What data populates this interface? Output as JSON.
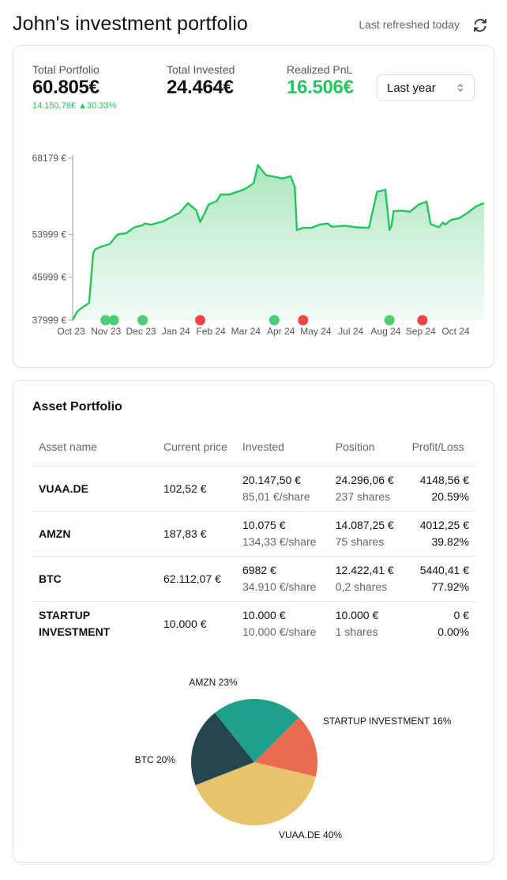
{
  "header": {
    "title": "John's investment portfolio",
    "refresh_text": "Last refreshed today"
  },
  "stats": {
    "total_portfolio": {
      "label": "Total Portfolio",
      "value": "60.805€",
      "change_abs": "14.150,78€",
      "change_pct": "▲30.33%"
    },
    "total_invested": {
      "label": "Total Invested",
      "value": "24.464€"
    },
    "realized_pnl": {
      "label": "Realized PnL",
      "value": "16.506€"
    }
  },
  "period_select": {
    "value": "Last year"
  },
  "colors": {
    "accent_green": "#22c55e",
    "buy_marker": "#4ccd73",
    "sell_marker": "#ef4444",
    "area_fill": "#bbf0cc"
  },
  "chart_data": [
    {
      "type": "area",
      "y_tick_labels": [
        "68179 €",
        "53999 €",
        "45999 €",
        "37999 €"
      ],
      "y_ticks": [
        68179,
        53999,
        45999,
        37999
      ],
      "ylim": [
        37999,
        68179
      ],
      "x_tick_labels": [
        "Oct 23",
        "Nov 23",
        "Dec 23",
        "Jan 24",
        "Feb 24",
        "Mar 24",
        "Apr 24",
        "May 24",
        "Jul 24",
        "Aug 24",
        "Sep 24",
        "Oct 24"
      ],
      "grid": false,
      "series": [
        {
          "x": [
            0.0,
            0.01,
            0.02,
            0.03,
            0.04,
            0.05,
            0.055,
            0.06,
            0.07,
            0.09,
            0.11,
            0.13,
            0.15,
            0.17,
            0.175,
            0.19,
            0.22,
            0.24,
            0.26,
            0.28,
            0.3,
            0.31,
            0.32,
            0.33,
            0.35,
            0.36,
            0.38,
            0.4,
            0.42,
            0.44,
            0.45,
            0.47,
            0.49,
            0.51,
            0.53,
            0.54,
            0.545,
            0.56,
            0.58,
            0.6,
            0.62,
            0.63,
            0.66,
            0.69,
            0.72,
            0.74,
            0.76,
            0.77,
            0.775,
            0.78,
            0.8,
            0.82,
            0.84,
            0.86,
            0.87,
            0.89,
            0.9,
            0.905,
            0.92,
            0.94,
            0.96,
            0.98,
            1.0
          ],
          "values": [
            38000,
            39500,
            40200,
            40700,
            41200,
            50500,
            51200,
            51400,
            51700,
            52200,
            54000,
            54200,
            55300,
            55700,
            56000,
            55800,
            56400,
            57200,
            58000,
            59800,
            58500,
            56300,
            57800,
            59500,
            60200,
            61400,
            61400,
            61900,
            62500,
            63500,
            66900,
            65000,
            64700,
            64400,
            64800,
            62800,
            54800,
            55200,
            55200,
            55800,
            56000,
            55400,
            55600,
            55300,
            55200,
            61900,
            62300,
            54800,
            55600,
            58300,
            58400,
            58200,
            59500,
            60100,
            55900,
            55300,
            56200,
            55800,
            56700,
            57000,
            58000,
            59200,
            59800
          ]
        }
      ],
      "markers": [
        {
          "x": 0.08,
          "kind": "buy"
        },
        {
          "x": 0.1,
          "kind": "buy"
        },
        {
          "x": 0.17,
          "kind": "buy"
        },
        {
          "x": 0.31,
          "kind": "sell"
        },
        {
          "x": 0.49,
          "kind": "buy"
        },
        {
          "x": 0.56,
          "kind": "sell"
        },
        {
          "x": 0.77,
          "kind": "buy"
        },
        {
          "x": 0.85,
          "kind": "sell"
        }
      ]
    },
    {
      "type": "pie",
      "labels": [
        "STARTUP INVESTMENT 16%",
        "VUAA.DE 40%",
        "BTC 20%",
        "AMZN 23%"
      ],
      "values": [
        16,
        40,
        20,
        23
      ],
      "colors": [
        "#e96c50",
        "#e8c36e",
        "#26464f",
        "#1ea08d"
      ]
    }
  ],
  "assets": {
    "title": "Asset Portfolio",
    "columns": [
      "Asset name",
      "Current price",
      "Invested",
      "Position",
      "Profit/Loss"
    ],
    "rows": [
      {
        "name": "VUAA.DE",
        "price": "102,52 €",
        "invested": "20.147,50 €",
        "per_share": "85,01 €/share",
        "position": "24.296,06 €",
        "shares": "237 shares",
        "pl_abs": "4148,56 €",
        "pl_pct": "20.59%"
      },
      {
        "name": "AMZN",
        "price": "187,83 €",
        "invested": "10.075 €",
        "per_share": "134,33 €/share",
        "position": "14.087,25 €",
        "shares": "75 shares",
        "pl_abs": "4012,25 €",
        "pl_pct": "39.82%"
      },
      {
        "name": "BTC",
        "price": "62.112,07 €",
        "invested": "6982 €",
        "per_share": "34.910 €/share",
        "position": "12.422,41 €",
        "shares": "0,2 shares",
        "pl_abs": "5440,41 €",
        "pl_pct": "77.92%"
      },
      {
        "name": "STARTUP INVESTMENT",
        "price": "10.000 €",
        "invested": "10.000 €",
        "per_share": "10.000 €/share",
        "position": "10.000 €",
        "shares": "1 shares",
        "pl_abs": "0 €",
        "pl_pct": "0.00%"
      }
    ]
  }
}
